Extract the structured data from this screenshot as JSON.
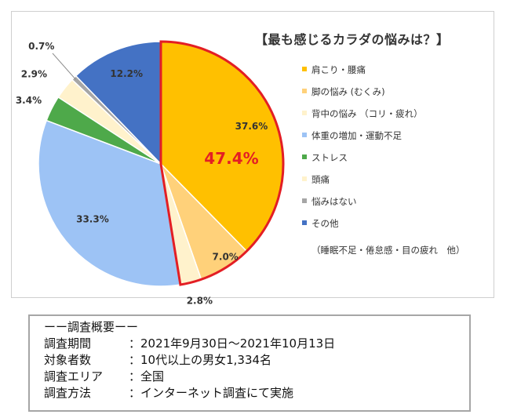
{
  "chart_data": {
    "type": "pie",
    "title": "【最も感じるカラダの悩みは？】",
    "slices": [
      {
        "name": "肩こり・腰痛",
        "value": 37.6,
        "label": "37.6%",
        "color": "#FFC000"
      },
      {
        "name": "脚の悩み (むくみ)",
        "value": 7.0,
        "label": "7.0%",
        "color": "#FFD17A"
      },
      {
        "name": "背中の悩み （コリ・疲れ）",
        "value": 2.8,
        "label": "2.8%",
        "color": "#FFF2CC"
      },
      {
        "name": "体重の増加・運動不足",
        "value": 33.3,
        "label": "33.3%",
        "color": "#9DC3F5"
      },
      {
        "name": "ストレス",
        "value": 3.4,
        "label": "3.4%",
        "color": "#4EA94A"
      },
      {
        "name": "頭痛",
        "value": 2.9,
        "label": "2.9%",
        "color": "#FFF2CC"
      },
      {
        "name": "悩みはない",
        "value": 0.7,
        "label": "0.7%",
        "color": "#A6A6A6"
      },
      {
        "name": "その他",
        "value": 12.2,
        "label": "12.2%",
        "color": "#4472C4"
      }
    ],
    "highlight": {
      "label": "47.4%",
      "slice_count": 3,
      "outline_color": "#E31E24",
      "text_color": "#E31E24"
    },
    "legend_placement": "right",
    "legend_note": "（睡眠不足・倦怠感・目の疲れ　他）"
  },
  "summary": {
    "heading": "ーー調査概要ーー",
    "rows": [
      {
        "label": "調査期間",
        "value": "：2021年9月30日～2021年10月13日"
      },
      {
        "label": "対象者数",
        "value": "：10代以上の男女1,334名"
      },
      {
        "label": "調査エリア",
        "value": "：全国"
      },
      {
        "label": "調査方法",
        "value": "：インターネット調査にて実施"
      }
    ]
  }
}
